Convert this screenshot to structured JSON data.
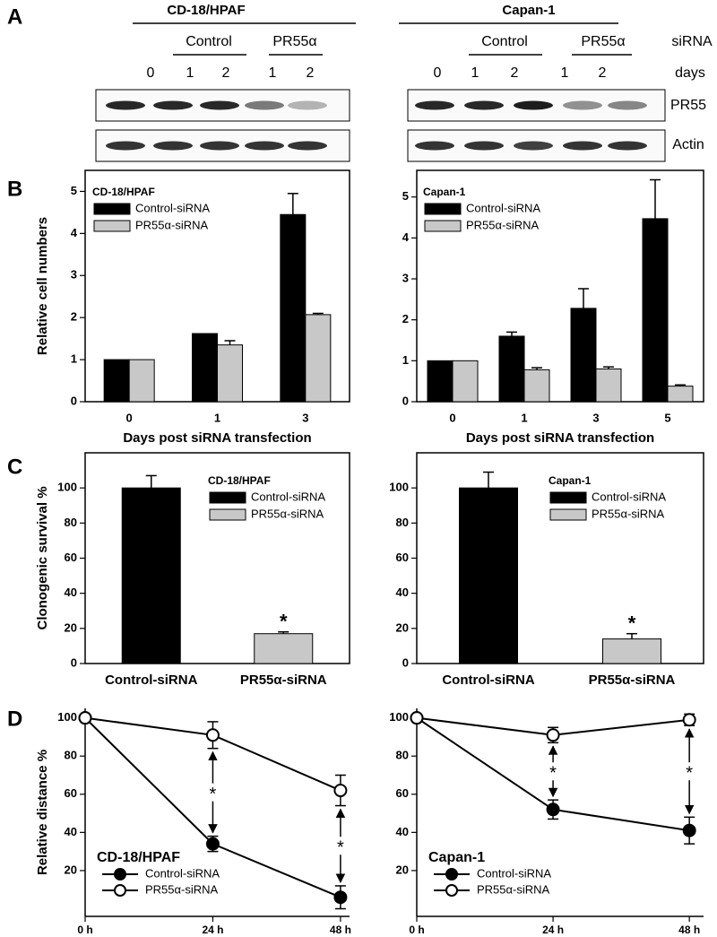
{
  "panel_labels": [
    "A",
    "B",
    "C",
    "D"
  ],
  "blot": {
    "cell_lines": [
      "CD-18/HPAF",
      "Capan-1"
    ],
    "groups": [
      "Control",
      "PR55α"
    ],
    "group_row_label": "siRNA",
    "days": [
      "0",
      "1",
      "2",
      "1",
      "2"
    ],
    "days_label": "days",
    "rows": [
      "PR55",
      "Actin"
    ]
  },
  "chart_data": [
    {
      "type": "bar",
      "title": "CD-18/HPAF",
      "xlabel": "Days post siRNA transfection",
      "ylabel": "Relative cell numbers",
      "categories": [
        "0",
        "1",
        "3"
      ],
      "series": [
        {
          "name": "Control-siRNA",
          "color": "#000000",
          "values": [
            1,
            1.62,
            4.45
          ],
          "errors": [
            0,
            0,
            0.5
          ]
        },
        {
          "name": "PR55α-siRNA",
          "color": "#c8c8c8",
          "values": [
            1,
            1.35,
            2.07
          ],
          "errors": [
            0,
            0.1,
            0.03
          ]
        }
      ],
      "ylim": [
        0,
        5.5
      ],
      "yticks": [
        0,
        1,
        2,
        3,
        4,
        5
      ]
    },
    {
      "type": "bar",
      "title": "Capan-1",
      "xlabel": "Days post siRNA transfection",
      "categories": [
        "0",
        "1",
        "3",
        "5"
      ],
      "series": [
        {
          "name": "Control-siRNA",
          "color": "#000000",
          "values": [
            1,
            1.6,
            2.28,
            4.47
          ],
          "errors": [
            0,
            0.1,
            0.48,
            0.95
          ]
        },
        {
          "name": "PR55α-siRNA",
          "color": "#c8c8c8",
          "values": [
            1,
            0.78,
            0.8,
            0.38
          ],
          "errors": [
            0,
            0.05,
            0.05,
            0.03
          ]
        }
      ],
      "ylim": [
        0,
        5.65
      ],
      "yticks": [
        0,
        1,
        2,
        3,
        4,
        5
      ]
    },
    {
      "type": "bar",
      "title": "CD-18/HPAF",
      "ylabel": "Clonogenic survival %",
      "categories": [
        "Control-siRNA",
        "PR55α-siRNA"
      ],
      "values": [
        100,
        17
      ],
      "errors": [
        7,
        1
      ],
      "colors": [
        "#000000",
        "#c8c8c8"
      ],
      "annotations": [
        "*"
      ],
      "ylim": [
        0,
        120
      ],
      "yticks": [
        0,
        20,
        40,
        60,
        80,
        100
      ]
    },
    {
      "type": "bar",
      "title": "Capan-1",
      "categories": [
        "Control-siRNA",
        "PR55α-siRNA"
      ],
      "values": [
        100,
        14
      ],
      "errors": [
        9,
        3
      ],
      "colors": [
        "#000000",
        "#c8c8c8"
      ],
      "annotations": [
        "*"
      ],
      "ylim": [
        0,
        120
      ],
      "yticks": [
        0,
        20,
        40,
        60,
        80,
        100
      ]
    },
    {
      "type": "line",
      "title": "CD-18/HPAF",
      "ylabel": "Relative distance %",
      "x": [
        0,
        24,
        48
      ],
      "series": [
        {
          "name": "Control-siRNA",
          "color": "#000000",
          "fill": "#000000",
          "values": [
            100,
            34,
            6
          ],
          "errors": [
            0,
            4,
            6
          ]
        },
        {
          "name": "PR55α-siRNA",
          "color": "#000000",
          "fill": "#ffffff",
          "values": [
            100,
            91,
            62
          ],
          "errors": [
            0,
            7,
            8
          ]
        }
      ],
      "annotations": [
        "*",
        "*"
      ],
      "xlim": [
        0,
        49.7
      ],
      "xticks": [
        {
          "value": 0,
          "label": "0 h"
        },
        {
          "value": 24,
          "label": "24 h"
        },
        {
          "value": 48,
          "label": "48 h"
        }
      ],
      "ylim": [
        -4,
        105
      ],
      "yticks": [
        20,
        40,
        60,
        80,
        100
      ]
    },
    {
      "type": "line",
      "title": "Capan-1",
      "x": [
        0,
        24,
        48
      ],
      "series": [
        {
          "name": "Control-siRNA",
          "color": "#000000",
          "fill": "#000000",
          "values": [
            100,
            52,
            41
          ],
          "errors": [
            0,
            5,
            7
          ]
        },
        {
          "name": "PR55α-siRNA",
          "color": "#000000",
          "fill": "#ffffff",
          "values": [
            100,
            91,
            99
          ],
          "errors": [
            0,
            4,
            3
          ]
        }
      ],
      "annotations": [
        "*",
        "*"
      ],
      "xlim": [
        0,
        50.5
      ],
      "xticks": [
        {
          "value": 0,
          "label": "0 h"
        },
        {
          "value": 24,
          "label": "24 h"
        },
        {
          "value": 48,
          "label": "48 h"
        }
      ],
      "ylim": [
        -4,
        105
      ],
      "yticks": [
        20,
        40,
        60,
        80,
        100
      ]
    }
  ]
}
